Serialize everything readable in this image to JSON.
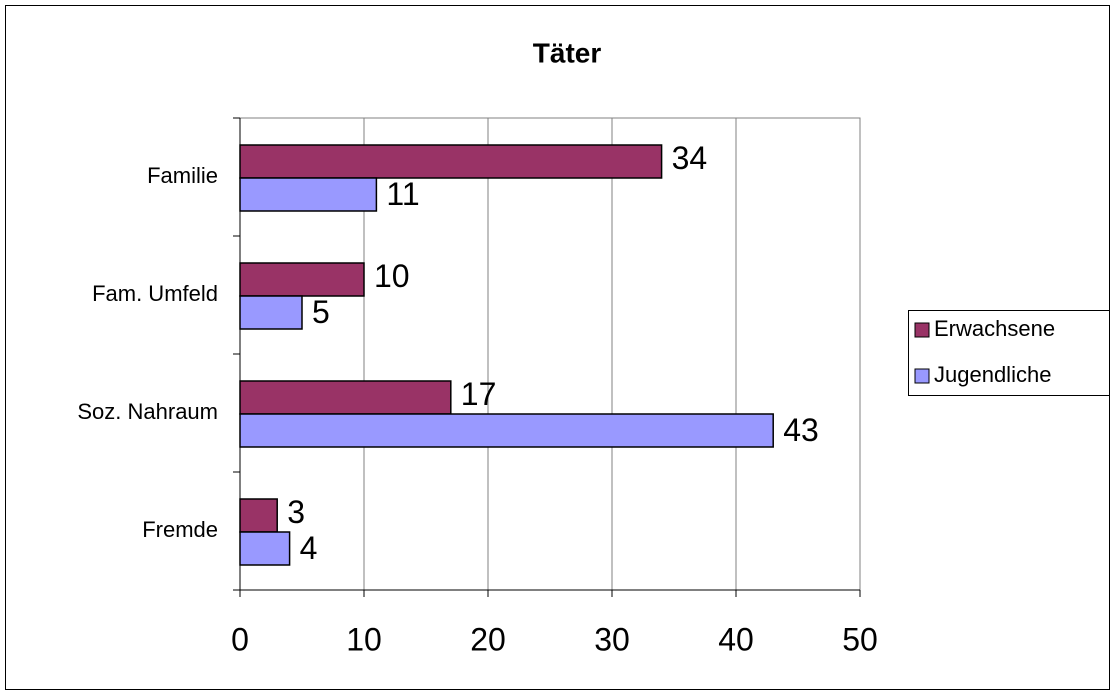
{
  "chart_data": {
    "type": "bar",
    "orientation": "horizontal",
    "title": "Täter",
    "categories": [
      "Familie",
      "Fam. Umfeld",
      "Soz. Nahraum",
      "Fremde"
    ],
    "series": [
      {
        "name": "Erwachsene",
        "color": "#993366",
        "values": [
          34,
          10,
          17,
          3
        ]
      },
      {
        "name": "Jugendliche",
        "color": "#9999ff",
        "values": [
          11,
          5,
          43,
          4
        ]
      }
    ],
    "xlim": [
      0,
      50
    ],
    "xticks": [
      0,
      10,
      20,
      30,
      40,
      50
    ],
    "grid": true,
    "legend": "right"
  }
}
